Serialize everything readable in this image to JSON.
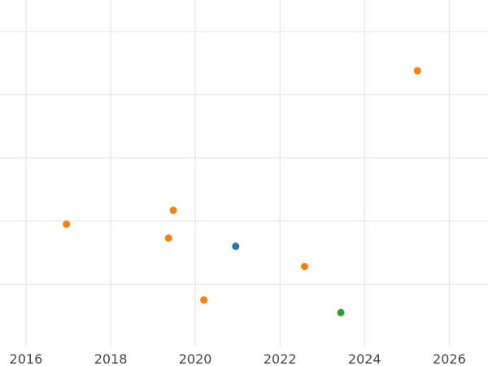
{
  "chart_data": {
    "type": "scatter",
    "title": "",
    "xlabel": "",
    "ylabel": "",
    "x_axis": {
      "type": "date",
      "range": [
        "2015-05-22",
        "2026-12-01"
      ],
      "ticks": [
        {
          "value": "2016-01-01",
          "label": "2016"
        },
        {
          "value": "2018-01-01",
          "label": "2018"
        },
        {
          "value": "2020-01-01",
          "label": "2020"
        },
        {
          "value": "2022-01-01",
          "label": "2022"
        },
        {
          "value": "2024-01-01",
          "label": "2024"
        },
        {
          "value": "2026-01-01",
          "label": "2026"
        }
      ]
    },
    "y_axis": {
      "range": [
        0,
        5.5
      ],
      "gridlines": [
        1,
        2,
        3,
        4,
        5
      ],
      "tick_labels_visible": false
    },
    "grid": true,
    "legend": "none",
    "series": [
      {
        "color": "#1f77b4",
        "points": [
          {
            "x": "2020-12-15",
            "y": 1.6
          }
        ]
      },
      {
        "color": "#ff7f0e",
        "points": [
          {
            "x": "2016-12-15",
            "y": 1.95
          },
          {
            "x": "2019-05-15",
            "y": 1.73
          },
          {
            "x": "2019-06-25",
            "y": 2.17
          },
          {
            "x": "2020-03-15",
            "y": 0.75
          },
          {
            "x": "2022-08-01",
            "y": 1.28
          },
          {
            "x": "2025-04-01",
            "y": 4.38
          }
        ]
      },
      {
        "color": "#2ca02c",
        "points": [
          {
            "x": "2023-06-10",
            "y": 0.55
          }
        ]
      }
    ]
  }
}
